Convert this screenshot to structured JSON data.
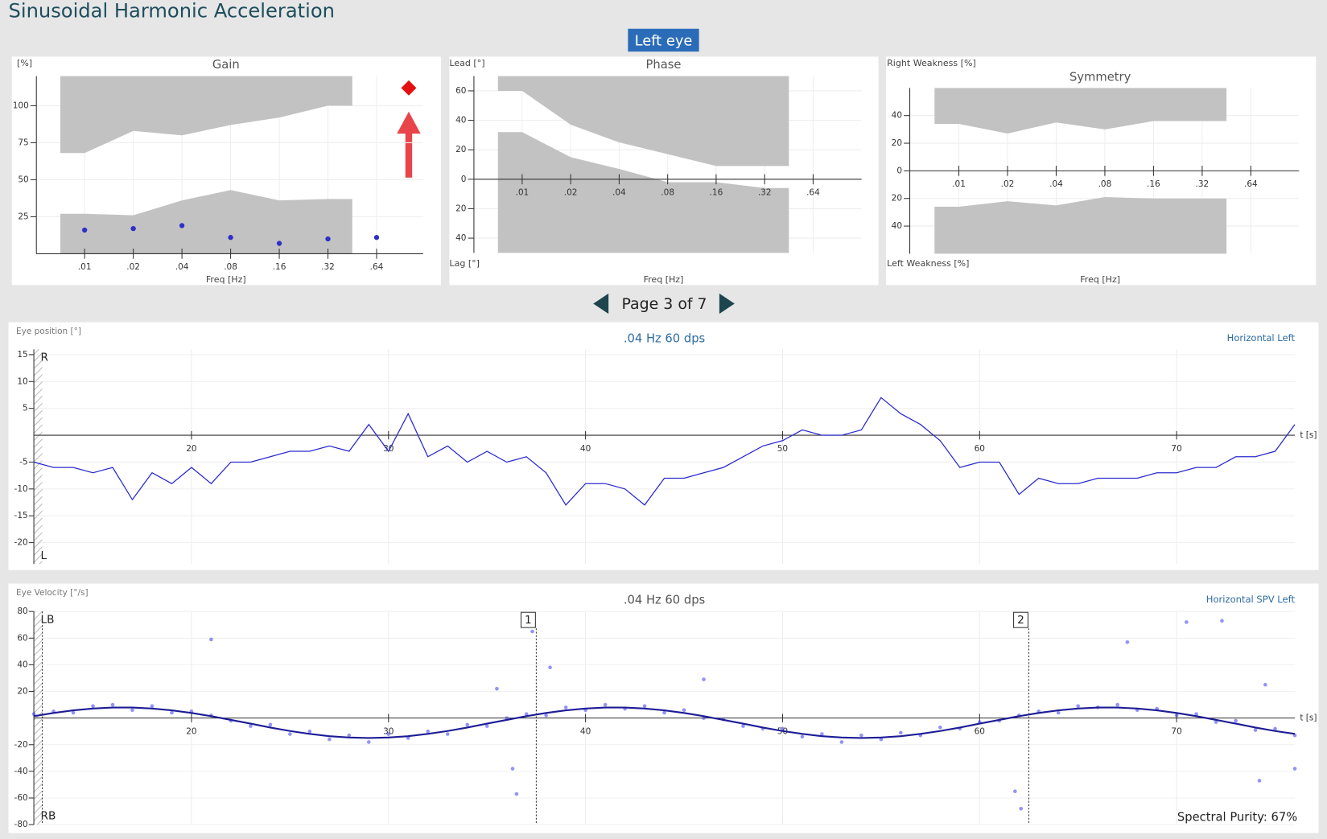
{
  "header": {
    "title": "Sinusoidal Harmonic Acceleration",
    "eye": "Left eye"
  },
  "pager": {
    "label": "Page 3 of 7"
  },
  "chart_data": [
    {
      "type": "range",
      "title": "Gain",
      "y_label": "[%]",
      "x_label": "Freq [Hz]",
      "categories": [
        ".01",
        ".02",
        ".04",
        ".08",
        ".16",
        ".32",
        ".64"
      ],
      "ylim": [
        0,
        120
      ],
      "yticks": [
        25,
        50,
        75,
        100
      ],
      "grid": true,
      "band_low": [
        27,
        26,
        36,
        43,
        36,
        37
      ],
      "band_high": [
        68,
        83,
        80,
        87,
        92,
        100
      ],
      "band_color": "#c2c2c2",
      "values": [
        16,
        17,
        19,
        11,
        7,
        10,
        11
      ],
      "color": "#2f2fc8"
    },
    {
      "type": "range",
      "title": "Phase",
      "y_label": "Lead [°]",
      "y_label_bottom": "Lag [°]",
      "x_label": "Freq [Hz]",
      "categories": [
        ".01",
        ".02",
        ".04",
        ".08",
        ".16",
        ".32",
        ".64"
      ],
      "ylim": [
        -50,
        70
      ],
      "yticks": [
        60,
        40,
        20,
        0,
        {
          "value": -20,
          "label": "20"
        },
        {
          "value": -40,
          "label": "40"
        }
      ],
      "grid": true,
      "band_low": [
        32,
        15,
        7,
        -2,
        -2,
        -6
      ],
      "band_high": [
        60,
        37,
        25,
        17,
        9,
        9
      ],
      "band_color": "#c2c2c2"
    },
    {
      "type": "range",
      "title": "Symmetry",
      "y_label": "Right Weakness [%]",
      "y_label_bottom": "Left Weakness [%]",
      "x_label": "Freq [Hz]",
      "categories": [
        ".01",
        ".02",
        ".04",
        ".08",
        ".16",
        ".32",
        ".64"
      ],
      "ylim": [
        -60,
        60
      ],
      "yticks": [
        40,
        20,
        0,
        {
          "value": -20,
          "label": "20"
        },
        {
          "value": -40,
          "label": "40"
        }
      ],
      "grid": true,
      "band_low": [
        -26,
        -22,
        -25,
        -19,
        -20,
        -20
      ],
      "band_high": [
        34,
        27,
        35,
        30,
        36,
        36
      ],
      "band_color": "#c2c2c2"
    },
    {
      "type": "line",
      "label": "Eye position [°]",
      "title": ".04 Hz 60 dps",
      "channel": "Horizontal Left",
      "x_label": "t [s]",
      "top_label": "R",
      "bottom_label": "L",
      "xlim": [
        12,
        76
      ],
      "xticks": [
        20,
        30,
        40,
        50,
        60,
        70
      ],
      "ylim": [
        -24,
        16
      ],
      "yticks": [
        15,
        10,
        5,
        -5,
        -10,
        -15,
        -20
      ],
      "grid": true,
      "color": "#2a2ad0",
      "x": [
        12,
        13,
        14,
        15,
        16,
        17,
        18,
        19,
        20,
        21,
        22,
        23,
        24,
        25,
        26,
        27,
        28,
        29,
        30,
        31,
        32,
        33,
        34,
        35,
        36,
        37,
        38,
        39,
        40,
        41,
        42,
        43,
        44,
        45,
        46,
        47,
        48,
        49,
        50,
        51,
        52,
        53,
        54,
        55,
        56,
        57,
        58,
        59,
        60,
        61,
        62,
        63,
        64,
        65,
        66,
        67,
        68,
        69,
        70,
        71,
        72,
        73,
        74,
        75,
        76
      ],
      "values": [
        -5,
        -6,
        -6,
        -7,
        -6,
        -12,
        -7,
        -9,
        -6,
        -9,
        -5,
        -5,
        -4,
        -3,
        -3,
        -2,
        -3,
        2,
        -3,
        4,
        -4,
        -2,
        -5,
        -3,
        -5,
        -4,
        -7,
        -13,
        -9,
        -9,
        -10,
        -13,
        -8,
        -8,
        -7,
        -6,
        -4,
        -2,
        -1,
        1,
        0,
        0,
        1,
        7,
        4,
        2,
        -1,
        -6,
        -5,
        -5,
        -11,
        -8,
        -9,
        -9,
        -8,
        -8,
        -8,
        -7,
        -7,
        -6,
        -6,
        -4,
        -4,
        -3,
        2
      ]
    },
    {
      "type": "scatter",
      "label": "Eye Velocity [°/s]",
      "title": ".04 Hz 60 dps",
      "channel": "Horizontal SPV Left",
      "x_label": "t [s]",
      "top_label": "LB",
      "bottom_label": "RB",
      "footer": "Spectral Purity: 67%",
      "xlim": [
        12,
        76
      ],
      "xticks": [
        20,
        30,
        40,
        50,
        60,
        70
      ],
      "ylim": [
        -80,
        80
      ],
      "yticks": [
        80,
        60,
        40,
        20,
        -20,
        -40,
        -60,
        -80
      ],
      "grid": true,
      "x": [
        12,
        13,
        14,
        15,
        16,
        17,
        18,
        19,
        20,
        21,
        22,
        23,
        24,
        25,
        26,
        27,
        28,
        29,
        30,
        31,
        32,
        33,
        34,
        35,
        36,
        37,
        38,
        39,
        40,
        41,
        42,
        43,
        44,
        45,
        46,
        47,
        48,
        49,
        50,
        51,
        52,
        53,
        54,
        55,
        56,
        57,
        58,
        59,
        60,
        61,
        62,
        63,
        64,
        65,
        66,
        67,
        68,
        69,
        70,
        71,
        72,
        73,
        74,
        75,
        76
      ],
      "fit": {
        "color": "#1c1c96",
        "values": [
          1.4,
          3.8,
          5.8,
          7.2,
          7.9,
          7.9,
          7.2,
          5.8,
          3.8,
          1.4,
          -1.4,
          -4.2,
          -7.1,
          -9.7,
          -11.9,
          -13.6,
          -14.6,
          -15,
          -14.6,
          -13.6,
          -11.9,
          -9.7,
          -7.1,
          -4.2,
          -1.4,
          1.4,
          3.8,
          5.8,
          7.2,
          7.9,
          7.9,
          7.2,
          5.8,
          3.8,
          1.4,
          -1.4,
          -4.2,
          -7.1,
          -9.7,
          -11.9,
          -13.6,
          -14.6,
          -15,
          -14.6,
          -13.6,
          -11.9,
          -9.7,
          -7.1,
          -4.2,
          -1.4,
          1.4,
          3.8,
          5.8,
          7.2,
          7.9,
          7.9,
          7.2,
          5.8,
          3.8,
          1.4,
          -1.4,
          -4.2,
          -7.1,
          -9.7,
          -11.9
        ]
      },
      "points": {
        "color": "#3a3af0",
        "x": [
          12,
          13,
          14,
          15,
          16,
          17,
          18,
          19,
          20,
          21,
          22,
          23,
          24,
          25,
          26,
          27,
          28,
          29,
          30,
          31,
          32,
          33,
          34,
          35,
          36,
          37,
          38,
          39,
          40,
          41,
          42,
          43,
          44,
          45,
          46,
          47,
          48,
          49,
          50,
          51,
          52,
          53,
          54,
          55,
          56,
          57,
          58,
          59,
          60,
          61,
          62,
          63,
          64,
          65,
          66,
          67,
          68,
          69,
          70,
          71,
          72,
          73,
          74,
          75,
          76,
          21,
          35.5,
          36.3,
          36.5,
          37.3,
          38.2,
          46,
          61.8,
          62.1,
          67.5,
          70.5,
          72.3,
          74.5,
          76,
          74.2
        ],
        "values": [
          3,
          5,
          4,
          9,
          10,
          6,
          9,
          4,
          5,
          2,
          -2,
          -6,
          -5,
          -12,
          -10,
          -16,
          -13,
          -18,
          -12,
          -15,
          -10,
          -12,
          -5,
          -6,
          0,
          3,
          2,
          8,
          6,
          10,
          7,
          9,
          4,
          6,
          0,
          -1,
          -6,
          -8,
          -8,
          -14,
          -12,
          -18,
          -13,
          -16,
          -11,
          -13,
          -7,
          -8,
          -3,
          -2,
          2,
          5,
          4,
          9,
          8,
          10,
          6,
          7,
          2,
          3,
          -3,
          -2,
          -9,
          -8,
          -13,
          59,
          22,
          -38,
          -57,
          65,
          38,
          29,
          -55,
          -68,
          57,
          72,
          73,
          25,
          -38,
          -47
        ]
      },
      "markers": [
        {
          "label": "1",
          "x": 37.5
        },
        {
          "label": "2",
          "x": 62.5
        }
      ]
    }
  ]
}
